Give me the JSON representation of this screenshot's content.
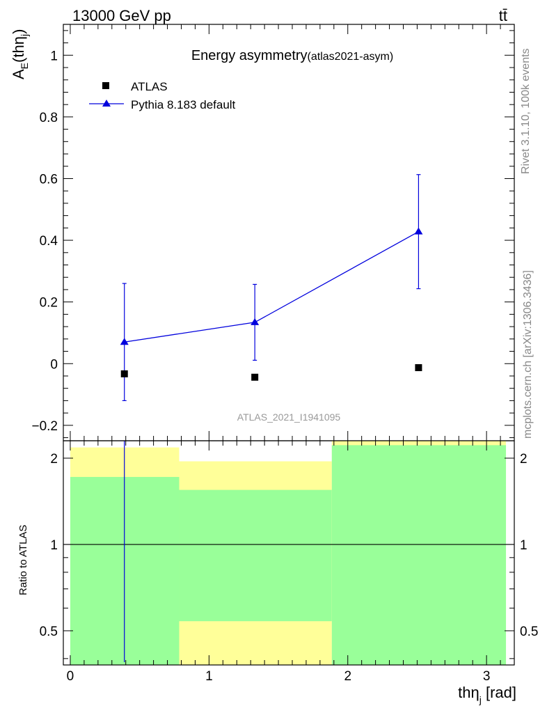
{
  "header": {
    "energy_label": "13000 GeV pp",
    "process_label": "tt̄"
  },
  "side_labels": {
    "rivet": "Rivet 3.1.10,  100k events",
    "mcplots": "mcplots.cern.ch [arXiv:1306.3436]"
  },
  "chart_data": [
    {
      "type": "scatter",
      "panel": "main",
      "title": "Energy asymmetry",
      "title_sub": "(atlas2021-asym)",
      "ylabel_main": "A",
      "ylabel_sub": "E",
      "ylabel_open": "(th",
      "ylabel_eta_sub": "j",
      "ylabel_close": ")",
      "analysis_tag": "ATLAS_2021_I1941095",
      "xlim": [
        -0.05,
        3.2
      ],
      "ylim": [
        -0.25,
        1.1
      ],
      "yticks": [
        -0.2,
        0,
        0.2,
        0.4,
        0.6,
        0.8,
        1
      ],
      "ytick_labels": [
        "−0.2",
        "0",
        "0.2",
        "0.4",
        "0.6",
        "0.8",
        "1"
      ],
      "legend_position": "top-left",
      "series": [
        {
          "name": "ATLAS",
          "marker": "square",
          "color": "#000000",
          "x": [
            0.39,
            1.33,
            2.51
          ],
          "y": [
            -0.033,
            -0.044,
            -0.013
          ]
        },
        {
          "name": "Pythia 8.183 default",
          "marker": "triangle",
          "color": "#0000dd",
          "x": [
            0.39,
            1.33,
            2.51
          ],
          "y": [
            0.07,
            0.134,
            0.428
          ],
          "yerr": [
            0.19,
            0.123,
            0.185
          ]
        }
      ]
    },
    {
      "type": "area",
      "panel": "ratio",
      "ylabel": "Ratio to ATLAS",
      "xlabel_main": "th",
      "xlabel_eta_sub": "j",
      "xlabel_unit": " [rad]",
      "xlim": [
        -0.05,
        3.2
      ],
      "ylim": [
        0.38,
        2.3
      ],
      "xticks": [
        0,
        1,
        2,
        3
      ],
      "xtick_labels": [
        "0",
        "1",
        "2",
        "3"
      ],
      "yticks": [
        0.5,
        1,
        2
      ],
      "ytick_labels": [
        "0.5",
        "1",
        "2"
      ],
      "bins": [
        {
          "x_lo": 0.0,
          "x_hi": 0.785,
          "yellow_lo": 0.38,
          "yellow_hi": 2.18,
          "green_lo": 0.38,
          "green_hi": 1.72
        },
        {
          "x_lo": 0.785,
          "x_hi": 1.885,
          "yellow_lo": 0.38,
          "yellow_hi": 1.95,
          "green_lo": 0.54,
          "green_hi": 1.55
        },
        {
          "x_lo": 1.885,
          "x_hi": 3.14,
          "yellow_lo": 0.38,
          "yellow_hi": 2.3,
          "green_lo": 0.38,
          "green_hi": 2.22
        }
      ],
      "mc_ratio_line_x": 0.39,
      "reference_y": 1,
      "colors": {
        "yellow": "#ffff99",
        "green": "#99ff99",
        "mc": "#0000dd"
      }
    }
  ]
}
